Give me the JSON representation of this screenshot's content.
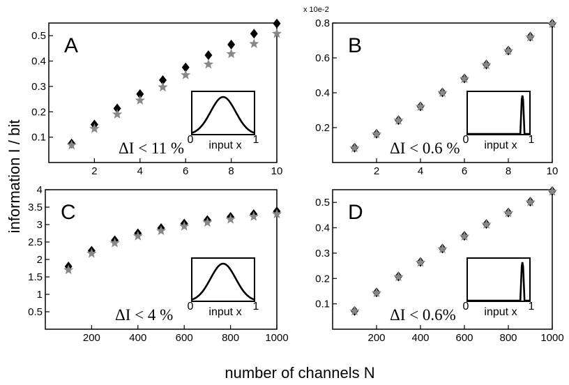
{
  "figure": {
    "ylabel": "information I / bit",
    "xlabel": "number of channels N"
  },
  "colors": {
    "diamond": "#000000",
    "star": "#888888",
    "frame": "#000000"
  },
  "chart_data": [
    {
      "type": "scatter",
      "panel": "A",
      "annotation": "ΔI < 11 %",
      "inset": {
        "xlabel": "input x",
        "x_start": "0",
        "x_end": "1",
        "shape": "wide-bell"
      },
      "exponent_label": "",
      "xlim": [
        0,
        10
      ],
      "ylim": [
        0,
        0.55
      ],
      "xticks": [
        2,
        4,
        6,
        8,
        10
      ],
      "xtick_labels": [
        "2",
        "4",
        "6",
        "8",
        "10"
      ],
      "yticks": [
        0.1,
        0.2,
        0.3,
        0.4,
        0.5
      ],
      "ytick_labels": [
        "0.1",
        "0.2",
        "0.3",
        "0.4",
        "0.5"
      ],
      "series": [
        {
          "marker": "diamond",
          "x": [
            1,
            2,
            3,
            4,
            5,
            6,
            7,
            8,
            9,
            10
          ],
          "y": [
            0.075,
            0.15,
            0.213,
            0.27,
            0.325,
            0.375,
            0.423,
            0.465,
            0.508,
            0.548
          ]
        },
        {
          "marker": "star",
          "x": [
            1,
            2,
            3,
            4,
            5,
            6,
            7,
            8,
            9,
            10
          ],
          "y": [
            0.068,
            0.133,
            0.19,
            0.245,
            0.297,
            0.345,
            0.387,
            0.428,
            0.468,
            0.508
          ]
        }
      ]
    },
    {
      "type": "scatter",
      "panel": "B",
      "annotation": "ΔI < 0.6 %",
      "inset": {
        "xlabel": "input x",
        "x_start": "0",
        "x_end": "1",
        "shape": "narrow-peak"
      },
      "exponent_label": "x 10e-2",
      "xlim": [
        0,
        10
      ],
      "ylim": [
        0,
        0.8
      ],
      "xticks": [
        2,
        4,
        6,
        8,
        10
      ],
      "xtick_labels": [
        "2",
        "4",
        "6",
        "8",
        "10"
      ],
      "yticks": [
        0.2,
        0.4,
        0.6,
        0.8
      ],
      "ytick_labels": [
        "0.2",
        "0.4",
        "0.6",
        "0.8"
      ],
      "series": [
        {
          "marker": "diamond",
          "x": [
            1,
            2,
            3,
            4,
            5,
            6,
            7,
            8,
            9,
            10
          ],
          "y": [
            0.085,
            0.165,
            0.243,
            0.322,
            0.402,
            0.482,
            0.562,
            0.642,
            0.722,
            0.797
          ]
        },
        {
          "marker": "star",
          "x": [
            1,
            2,
            3,
            4,
            5,
            6,
            7,
            8,
            9,
            10
          ],
          "y": [
            0.083,
            0.163,
            0.241,
            0.32,
            0.4,
            0.48,
            0.56,
            0.64,
            0.719,
            0.795
          ]
        }
      ]
    },
    {
      "type": "scatter",
      "panel": "C",
      "annotation": "ΔI < 4 %",
      "inset": {
        "xlabel": "input x",
        "x_start": "0",
        "x_end": "1",
        "shape": "wide-bell"
      },
      "exponent_label": "",
      "xlim": [
        0,
        1000
      ],
      "ylim": [
        0,
        4
      ],
      "xticks": [
        200,
        400,
        600,
        800,
        1000
      ],
      "xtick_labels": [
        "200",
        "400",
        "600",
        "800",
        "1000"
      ],
      "yticks": [
        0.5,
        1,
        1.5,
        2,
        2.5,
        3,
        3.5,
        4
      ],
      "ytick_labels": [
        "0.5",
        "1",
        "1.5",
        "2",
        "2.5",
        "3",
        "3.5",
        "4"
      ],
      "series": [
        {
          "marker": "diamond",
          "x": [
            100,
            200,
            300,
            400,
            500,
            600,
            700,
            800,
            900,
            1000
          ],
          "y": [
            1.8,
            2.25,
            2.55,
            2.75,
            2.9,
            3.03,
            3.13,
            3.22,
            3.3,
            3.38
          ]
        },
        {
          "marker": "star",
          "x": [
            100,
            200,
            300,
            400,
            500,
            600,
            700,
            800,
            900,
            1000
          ],
          "y": [
            1.7,
            2.17,
            2.47,
            2.67,
            2.82,
            2.95,
            3.06,
            3.15,
            3.23,
            3.3
          ]
        }
      ]
    },
    {
      "type": "scatter",
      "panel": "D",
      "annotation": "ΔI < 0.6%",
      "inset": {
        "xlabel": "input x",
        "x_start": "0",
        "x_end": "1",
        "shape": "narrow-peak"
      },
      "exponent_label": "",
      "xlim": [
        0,
        1000
      ],
      "ylim": [
        0,
        0.55
      ],
      "xticks": [
        200,
        400,
        600,
        800,
        1000
      ],
      "xtick_labels": [
        "200",
        "400",
        "600",
        "800",
        "1000"
      ],
      "yticks": [
        0.1,
        0.2,
        0.3,
        0.4,
        0.5
      ],
      "ytick_labels": [
        "0.1",
        "0.2",
        "0.3",
        "0.4",
        "0.5"
      ],
      "series": [
        {
          "marker": "diamond",
          "x": [
            100,
            200,
            300,
            400,
            500,
            600,
            700,
            800,
            900,
            1000
          ],
          "y": [
            0.072,
            0.145,
            0.208,
            0.265,
            0.318,
            0.368,
            0.415,
            0.46,
            0.503,
            0.545
          ]
        },
        {
          "marker": "star",
          "x": [
            100,
            200,
            300,
            400,
            500,
            600,
            700,
            800,
            900,
            1000
          ],
          "y": [
            0.071,
            0.143,
            0.206,
            0.263,
            0.316,
            0.366,
            0.413,
            0.458,
            0.501,
            0.543
          ]
        }
      ]
    }
  ]
}
